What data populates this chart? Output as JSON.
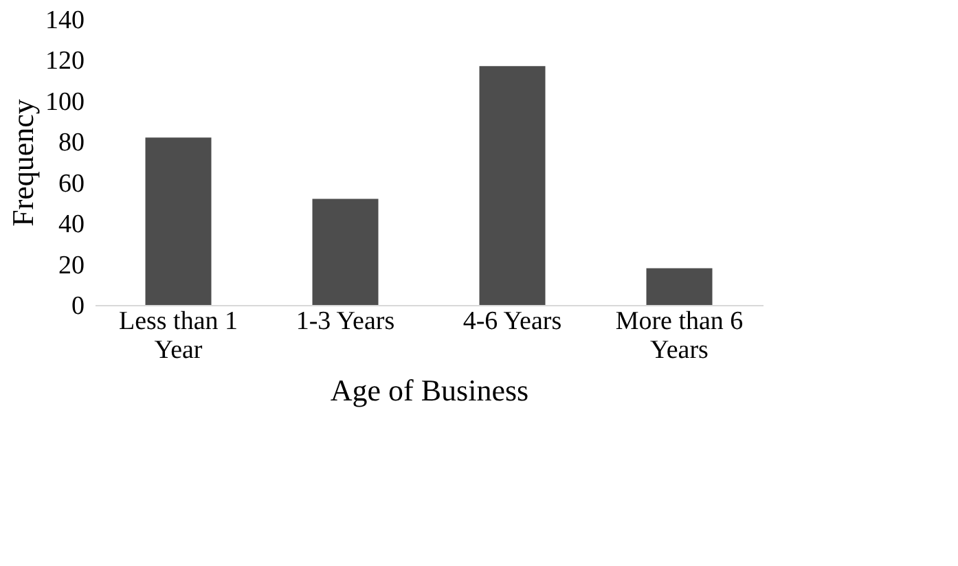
{
  "chart_data": {
    "type": "bar",
    "xlabel": "Age of Business",
    "ylabel": "Frequency",
    "categories": [
      "Less than 1 Year",
      "1-3 Years",
      "4-6 Years",
      "More than 6 Years"
    ],
    "values": [
      82,
      52,
      117,
      18
    ],
    "color": "#4d4d4d",
    "ylim": [
      0,
      140
    ],
    "yticks": [
      0,
      20,
      40,
      60,
      80,
      100,
      120,
      140
    ],
    "grid": false
  }
}
